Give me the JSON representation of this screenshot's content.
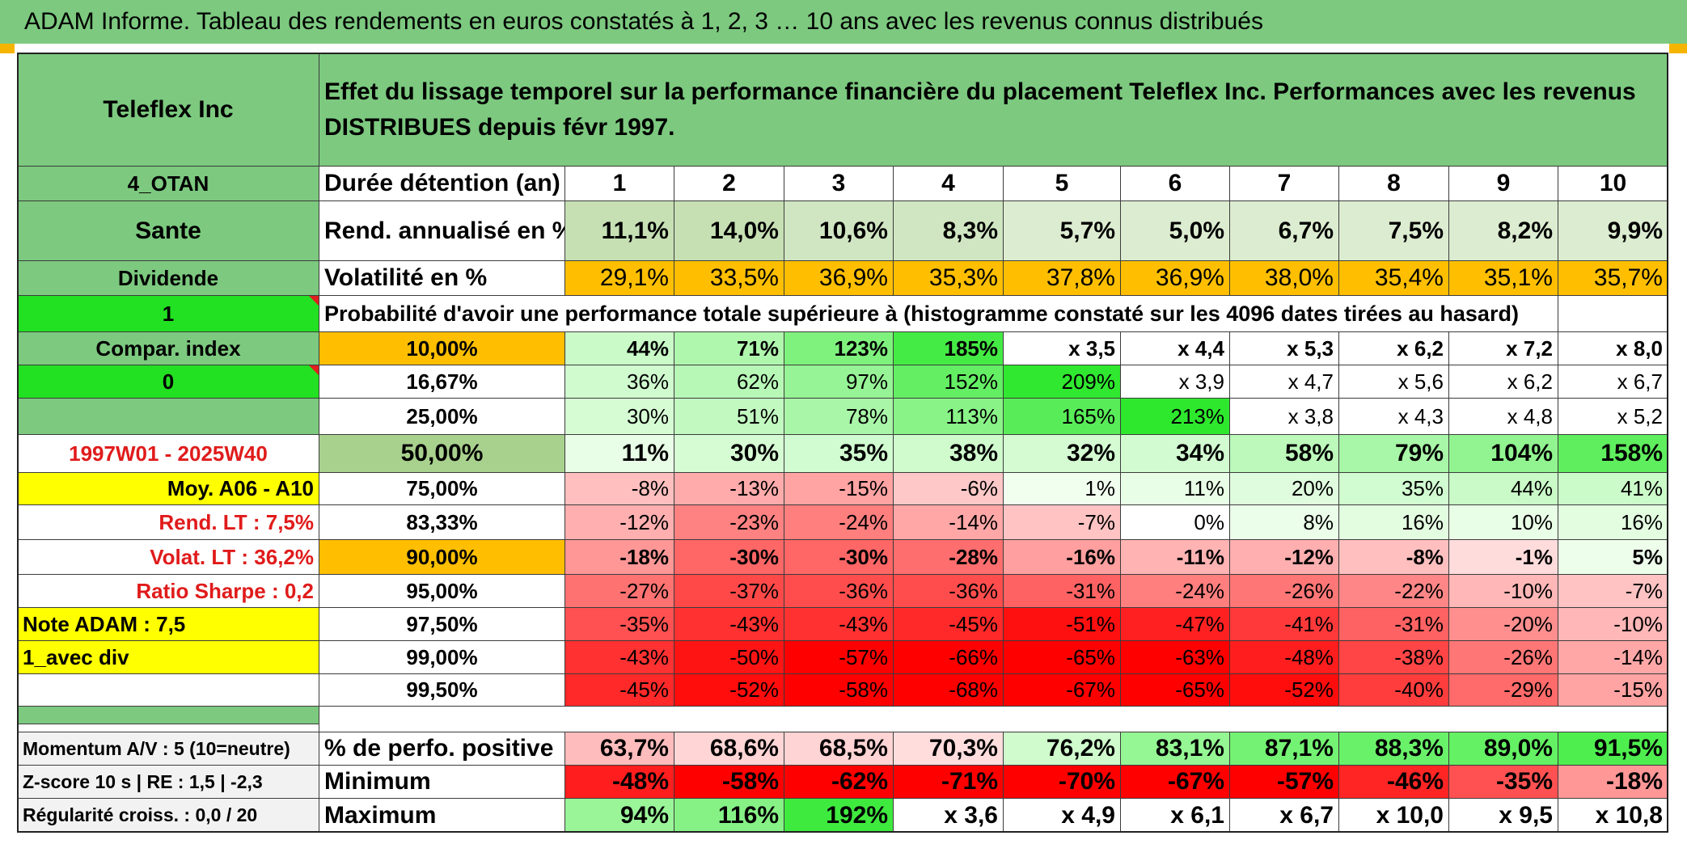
{
  "page_title": "ADAM Informe. Tableau des rendements en euros constatés à 1, 2, 3 … 10 ans avec les revenus connus distribués",
  "colors": {
    "green_header": "#7cc97f",
    "orange": "#ffbf00",
    "yellow": "#ffff00",
    "bright_green": "#22e022",
    "light_green_row": "#c6e0b4",
    "mid_green": "#a9d18e",
    "gray_row": "#f2f2f2"
  },
  "left_column": {
    "name": "Teleflex Inc",
    "code": "4_OTAN",
    "sector": "Sante",
    "type": "Dividende",
    "flag_1": "1",
    "compar_index": "Compar. index",
    "flag_0": "0",
    "period": "1997W01 - 2025W40",
    "moy": "Moy. A06 - A10",
    "rend_lt": "Rend. LT :   7,5%",
    "volat_lt": "Volat. LT :   36,2%",
    "sharpe": "Ratio Sharpe :    0,2",
    "note": "Note ADAM : 7,5",
    "avec_div": "1_avec div",
    "momentum": "Momentum A/V : 5 (10=neutre)",
    "zscore": "Z-score 10 s | RE : 1,5 | -2,3",
    "regularite": "Régularité croiss. : 0,0 / 20"
  },
  "header": {
    "description": "Effet du lissage temporel sur la performance financière du placement Teleflex Inc. Performances avec les revenus DISTRIBUES depuis févr 1997.",
    "duree_label": "Durée détention (an)",
    "years": [
      "1",
      "2",
      "3",
      "4",
      "5",
      "6",
      "7",
      "8",
      "9",
      "10"
    ]
  },
  "rend_row": {
    "label": "Rend. annualisé en %",
    "values": [
      "11,1%",
      "14,0%",
      "10,6%",
      "8,3%",
      "5,7%",
      "5,0%",
      "6,7%",
      "7,5%",
      "8,2%",
      "9,9%"
    ]
  },
  "vol_row": {
    "label": "Volatilité en %",
    "values": [
      "29,1%",
      "33,5%",
      "36,9%",
      "35,3%",
      "37,8%",
      "36,9%",
      "38,0%",
      "35,4%",
      "35,1%",
      "35,7%"
    ]
  },
  "proba_title": "Probabilité d'avoir une performance totale supérieure à (histogramme constaté sur les 4096 dates tirées au hasard)",
  "proba_rows": [
    {
      "pct": "10,00%",
      "values": [
        "44%",
        "71%",
        "123%",
        "185%",
        "x 3,5",
        "x 4,4",
        "x 5,3",
        "x 6,2",
        "x 7,2",
        "x 8,0"
      ]
    },
    {
      "pct": "16,67%",
      "values": [
        "36%",
        "62%",
        "97%",
        "152%",
        "209%",
        "x 3,9",
        "x 4,7",
        "x 5,6",
        "x 6,2",
        "x 6,7"
      ]
    },
    {
      "pct": "25,00%",
      "values": [
        "30%",
        "51%",
        "78%",
        "113%",
        "165%",
        "213%",
        "x 3,8",
        "x 4,3",
        "x 4,8",
        "x 5,2"
      ]
    },
    {
      "pct": "50,00%",
      "values": [
        "11%",
        "30%",
        "35%",
        "38%",
        "32%",
        "34%",
        "58%",
        "79%",
        "104%",
        "158%"
      ]
    },
    {
      "pct": "75,00%",
      "values": [
        "-8%",
        "-13%",
        "-15%",
        "-6%",
        "1%",
        "11%",
        "20%",
        "35%",
        "44%",
        "41%"
      ]
    },
    {
      "pct": "83,33%",
      "values": [
        "-12%",
        "-23%",
        "-24%",
        "-14%",
        "-7%",
        "0%",
        "8%",
        "16%",
        "10%",
        "16%"
      ]
    },
    {
      "pct": "90,00%",
      "values": [
        "-18%",
        "-30%",
        "-30%",
        "-28%",
        "-16%",
        "-11%",
        "-12%",
        "-8%",
        "-1%",
        "5%"
      ]
    },
    {
      "pct": "95,00%",
      "values": [
        "-27%",
        "-37%",
        "-36%",
        "-36%",
        "-31%",
        "-24%",
        "-26%",
        "-22%",
        "-10%",
        "-7%"
      ]
    },
    {
      "pct": "97,50%",
      "values": [
        "-35%",
        "-43%",
        "-43%",
        "-45%",
        "-51%",
        "-47%",
        "-41%",
        "-31%",
        "-20%",
        "-10%"
      ]
    },
    {
      "pct": "99,00%",
      "values": [
        "-43%",
        "-50%",
        "-57%",
        "-66%",
        "-65%",
        "-63%",
        "-48%",
        "-38%",
        "-26%",
        "-14%"
      ]
    },
    {
      "pct": "99,50%",
      "values": [
        "-45%",
        "-52%",
        "-58%",
        "-68%",
        "-67%",
        "-65%",
        "-52%",
        "-40%",
        "-29%",
        "-15%"
      ]
    }
  ],
  "perf_row": {
    "label": "% de perfo. positive",
    "values": [
      "63,7%",
      "68,6%",
      "68,5%",
      "70,3%",
      "76,2%",
      "83,1%",
      "87,1%",
      "88,3%",
      "89,0%",
      "91,5%"
    ]
  },
  "min_row": {
    "label": "Minimum",
    "values": [
      "-48%",
      "-58%",
      "-62%",
      "-71%",
      "-70%",
      "-67%",
      "-57%",
      "-46%",
      "-35%",
      "-18%"
    ]
  },
  "max_row": {
    "label": "Maximum",
    "values": [
      "94%",
      "116%",
      "192%",
      "x 3,6",
      "x 4,9",
      "x 6,1",
      "x 6,7",
      "x 10,0",
      "x 9,5",
      "x 10,8"
    ]
  }
}
